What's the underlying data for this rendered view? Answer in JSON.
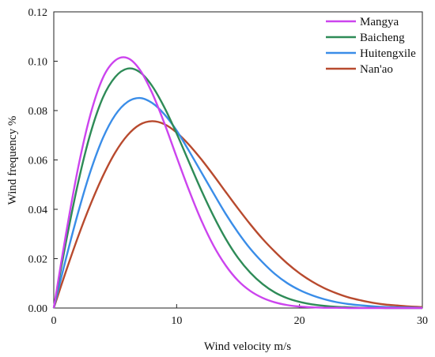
{
  "chart_data": {
    "type": "line",
    "xlabel": "Wind velocity  m/s",
    "ylabel": "Wind frequency %",
    "xlim": [
      0,
      30
    ],
    "ylim": [
      0,
      0.12
    ],
    "x_ticks": [
      "0",
      "10",
      "20",
      "30"
    ],
    "y_ticks": [
      "0.00",
      "0.02",
      "0.04",
      "0.06",
      "0.08",
      "0.10",
      "0.12"
    ],
    "grid": false,
    "legend_position": "top-right",
    "x": [
      0,
      1,
      2,
      3,
      4,
      5,
      6,
      7,
      8,
      9,
      10,
      11,
      12,
      13,
      14,
      15,
      16,
      17,
      18,
      19,
      20,
      21,
      22,
      23,
      24,
      25,
      26,
      27,
      28,
      29,
      30
    ],
    "series": [
      {
        "name": "Mangya",
        "color": "#cc44ee",
        "values": [
          0,
          0.0302,
          0.0573,
          0.0787,
          0.0933,
          0.1003,
          0.1013,
          0.0966,
          0.0872,
          0.0749,
          0.0612,
          0.0478,
          0.0356,
          0.0253,
          0.0172,
          0.0111,
          0.0069,
          0.0041,
          0.0023,
          0.0012,
          0.0006,
          0.0003,
          0.0001,
          0.0001,
          0.0,
          0.0,
          0.0,
          0.0,
          0.0,
          0.0,
          0.0
        ]
      },
      {
        "name": "Baicheng",
        "color": "#2e8b57",
        "values": [
          0,
          0.0269,
          0.0512,
          0.071,
          0.0853,
          0.0936,
          0.097,
          0.0956,
          0.09,
          0.0813,
          0.0707,
          0.0592,
          0.0478,
          0.0373,
          0.028,
          0.0203,
          0.0143,
          0.0097,
          0.0063,
          0.004,
          0.0025,
          0.0015,
          0.0009,
          0.0005,
          0.0003,
          0.0001,
          0.0001,
          0.0,
          0.0,
          0.0,
          0.0
        ]
      },
      {
        "name": "Huitengxile",
        "color": "#3a8de8",
        "values": [
          0,
          0.0202,
          0.039,
          0.0556,
          0.0689,
          0.0782,
          0.0835,
          0.0851,
          0.0831,
          0.0785,
          0.0719,
          0.0637,
          0.0551,
          0.0465,
          0.0381,
          0.0306,
          0.024,
          0.0185,
          0.0138,
          0.0101,
          0.0073,
          0.0052,
          0.0036,
          0.0024,
          0.0016,
          0.0011,
          0.0007,
          0.0004,
          0.0003,
          0.0002,
          0.0001
        ]
      },
      {
        "name": "Nan'ao",
        "color": "#b84a2e",
        "values": [
          0,
          0.015,
          0.0292,
          0.0421,
          0.0535,
          0.063,
          0.07,
          0.0743,
          0.0757,
          0.0745,
          0.0711,
          0.0662,
          0.0603,
          0.0538,
          0.047,
          0.0403,
          0.0339,
          0.028,
          0.0228,
          0.0181,
          0.0141,
          0.0108,
          0.0081,
          0.006,
          0.0043,
          0.0031,
          0.0021,
          0.0014,
          0.001,
          0.0006,
          0.0004
        ]
      }
    ]
  }
}
